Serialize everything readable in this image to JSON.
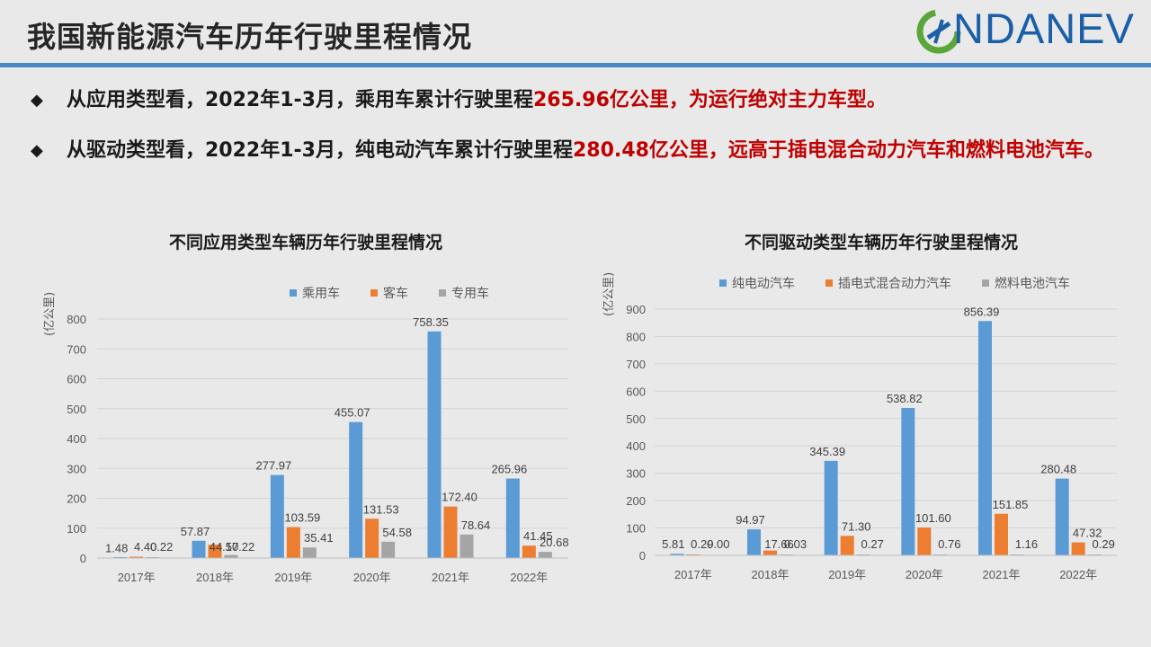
{
  "page": {
    "title": "我国新能源汽车历年行驶里程情况",
    "logo_text": "NDANEV"
  },
  "bullets": [
    {
      "mark": "◆",
      "text_plain": "从应用类型看，2022年1-3月，乘用车累计行驶里程",
      "text_red": "265.96亿公里，为运行绝对主力车型。"
    },
    {
      "mark": "◆",
      "text_plain": "从驱动类型看，2022年1-3月，纯电动汽车累计行驶里程",
      "text_red": "280.48亿公里，远高于插电混合动力汽车和燃料电池汽车。"
    }
  ],
  "colors": {
    "blue": "#5b9bd5",
    "orange": "#ed7d31",
    "gray": "#a5a5a5",
    "accent": "#4a86c6",
    "red": "#c00000"
  },
  "chart_data": [
    {
      "type": "bar",
      "title": "不同应用类型车辆历年行驶里程情况",
      "ylabel": "(亿公里)",
      "ylim": [
        0,
        800
      ],
      "yticks": [
        0,
        100,
        200,
        300,
        400,
        500,
        600,
        700,
        800
      ],
      "grid": true,
      "legend": "top",
      "categories": [
        "2017年",
        "2018年",
        "2019年",
        "2020年",
        "2021年",
        "2022年"
      ],
      "series": [
        {
          "name": "乘用车",
          "color": "#5b9bd5",
          "values": [
            1.48,
            57.87,
            277.97,
            455.07,
            758.35,
            265.96
          ],
          "labels": [
            "1.48",
            "57.87",
            "277.97",
            "455.07",
            "758.35",
            "265.96"
          ]
        },
        {
          "name": "客车",
          "color": "#ed7d31",
          "values": [
            4.4,
            44.57,
            103.59,
            131.53,
            172.4,
            41.45
          ],
          "labels": [
            "4.40",
            "44.57",
            "103.59",
            "131.53",
            "172.40",
            "41.45"
          ]
        },
        {
          "name": "专用车",
          "color": "#a5a5a5",
          "values": [
            0.22,
            10.22,
            35.41,
            54.58,
            78.64,
            20.68
          ],
          "labels": [
            "0.22",
            "10.22",
            "35.41",
            "54.58",
            "78.64",
            "20.68"
          ]
        }
      ]
    },
    {
      "type": "bar",
      "title": "不同驱动类型车辆历年行驶里程情况",
      "ylabel": "(亿公里)",
      "ylim": [
        0,
        900
      ],
      "yticks": [
        0,
        100,
        200,
        300,
        400,
        500,
        600,
        700,
        800,
        900
      ],
      "grid": true,
      "legend": "top",
      "categories": [
        "2017年",
        "2018年",
        "2019年",
        "2020年",
        "2021年",
        "2022年"
      ],
      "series": [
        {
          "name": "纯电动汽车",
          "color": "#5b9bd5",
          "values": [
            5.81,
            94.97,
            345.39,
            538.82,
            856.39,
            280.48
          ],
          "labels": [
            "5.81",
            "94.97",
            "345.39",
            "538.82",
            "856.39",
            "280.48"
          ]
        },
        {
          "name": "插电式混合动力汽车",
          "color": "#ed7d31",
          "values": [
            0.29,
            17.66,
            71.3,
            101.6,
            151.85,
            47.32
          ],
          "labels": [
            "0.29",
            "17.66",
            "71.30",
            "101.60",
            "151.85",
            "47.32"
          ]
        },
        {
          "name": "燃料电池汽车",
          "color": "#a5a5a5",
          "values": [
            0.0,
            0.03,
            0.27,
            0.76,
            1.16,
            0.29
          ],
          "labels": [
            "0.00",
            "0.03",
            "0.27",
            "0.76",
            "1.16",
            "0.29"
          ]
        }
      ]
    }
  ]
}
